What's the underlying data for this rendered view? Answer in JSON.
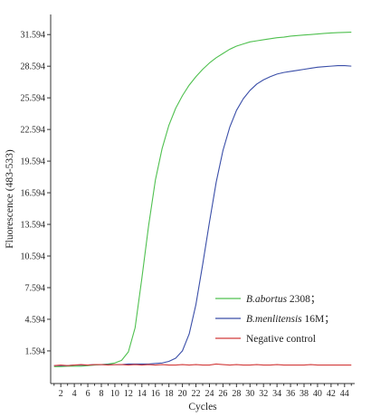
{
  "chart_data": {
    "type": "line",
    "xlabel": "Cycles",
    "ylabel": "Fluorescence (483-533)",
    "xlim": [
      0.5,
      45.5
    ],
    "ylim": [
      -1.5,
      33.5
    ],
    "x_ticks": [
      2,
      4,
      6,
      8,
      10,
      12,
      14,
      16,
      18,
      20,
      22,
      24,
      26,
      28,
      30,
      32,
      34,
      36,
      38,
      40,
      42,
      44
    ],
    "y_ticks": [
      1.594,
      4.594,
      7.594,
      10.594,
      13.594,
      16.594,
      19.594,
      22.594,
      25.594,
      28.594,
      31.594
    ],
    "y_tick_labels": [
      "1.594",
      "4.594",
      "7.594",
      "10.594",
      "13.594",
      "16.594",
      "19.594",
      "22.594",
      "25.594",
      "28.594",
      "31.594"
    ],
    "grid": false,
    "legend_position": "bottom-right",
    "x": [
      1,
      2,
      3,
      4,
      5,
      6,
      7,
      8,
      9,
      10,
      11,
      12,
      13,
      14,
      15,
      16,
      17,
      18,
      19,
      20,
      21,
      22,
      23,
      24,
      25,
      26,
      27,
      28,
      29,
      30,
      31,
      32,
      33,
      34,
      35,
      36,
      37,
      38,
      39,
      40,
      41,
      42,
      43,
      44,
      45
    ],
    "series": [
      {
        "name": "B.abortus 2308；",
        "name_italic": "B.abortus",
        "name_rest": " 2308；",
        "color": "#4fc04f",
        "values": [
          0.1,
          0.1,
          0.15,
          0.15,
          0.15,
          0.2,
          0.25,
          0.3,
          0.35,
          0.45,
          0.7,
          1.5,
          3.8,
          8.5,
          13.5,
          17.8,
          20.8,
          23.0,
          24.6,
          25.8,
          26.8,
          27.6,
          28.3,
          28.9,
          29.4,
          29.8,
          30.2,
          30.5,
          30.7,
          30.9,
          31.0,
          31.1,
          31.2,
          31.3,
          31.35,
          31.45,
          31.5,
          31.55,
          31.6,
          31.65,
          31.7,
          31.75,
          31.78,
          31.8,
          31.82
        ]
      },
      {
        "name": "B.menlitensis 16M；",
        "name_italic": "B.menlitensis",
        "name_rest": " 16M；",
        "color": "#3a4ea8",
        "values": [
          0.2,
          0.2,
          0.2,
          0.25,
          0.25,
          0.25,
          0.3,
          0.3,
          0.3,
          0.3,
          0.3,
          0.35,
          0.35,
          0.35,
          0.35,
          0.4,
          0.45,
          0.6,
          0.9,
          1.6,
          3.2,
          6.0,
          9.8,
          13.8,
          17.6,
          20.6,
          22.8,
          24.4,
          25.5,
          26.3,
          26.9,
          27.3,
          27.6,
          27.85,
          28.0,
          28.1,
          28.2,
          28.3,
          28.4,
          28.5,
          28.55,
          28.6,
          28.65,
          28.65,
          28.6
        ]
      },
      {
        "name": "Negative control",
        "name_italic": "",
        "name_rest": "Negative control",
        "color": "#d23a3a",
        "values": [
          0.2,
          0.25,
          0.2,
          0.25,
          0.3,
          0.25,
          0.3,
          0.3,
          0.25,
          0.3,
          0.3,
          0.25,
          0.3,
          0.25,
          0.3,
          0.25,
          0.3,
          0.25,
          0.25,
          0.3,
          0.25,
          0.3,
          0.25,
          0.25,
          0.35,
          0.3,
          0.25,
          0.3,
          0.25,
          0.25,
          0.3,
          0.25,
          0.25,
          0.3,
          0.25,
          0.25,
          0.25,
          0.25,
          0.3,
          0.25,
          0.25,
          0.25,
          0.25,
          0.25,
          0.25
        ]
      }
    ]
  }
}
